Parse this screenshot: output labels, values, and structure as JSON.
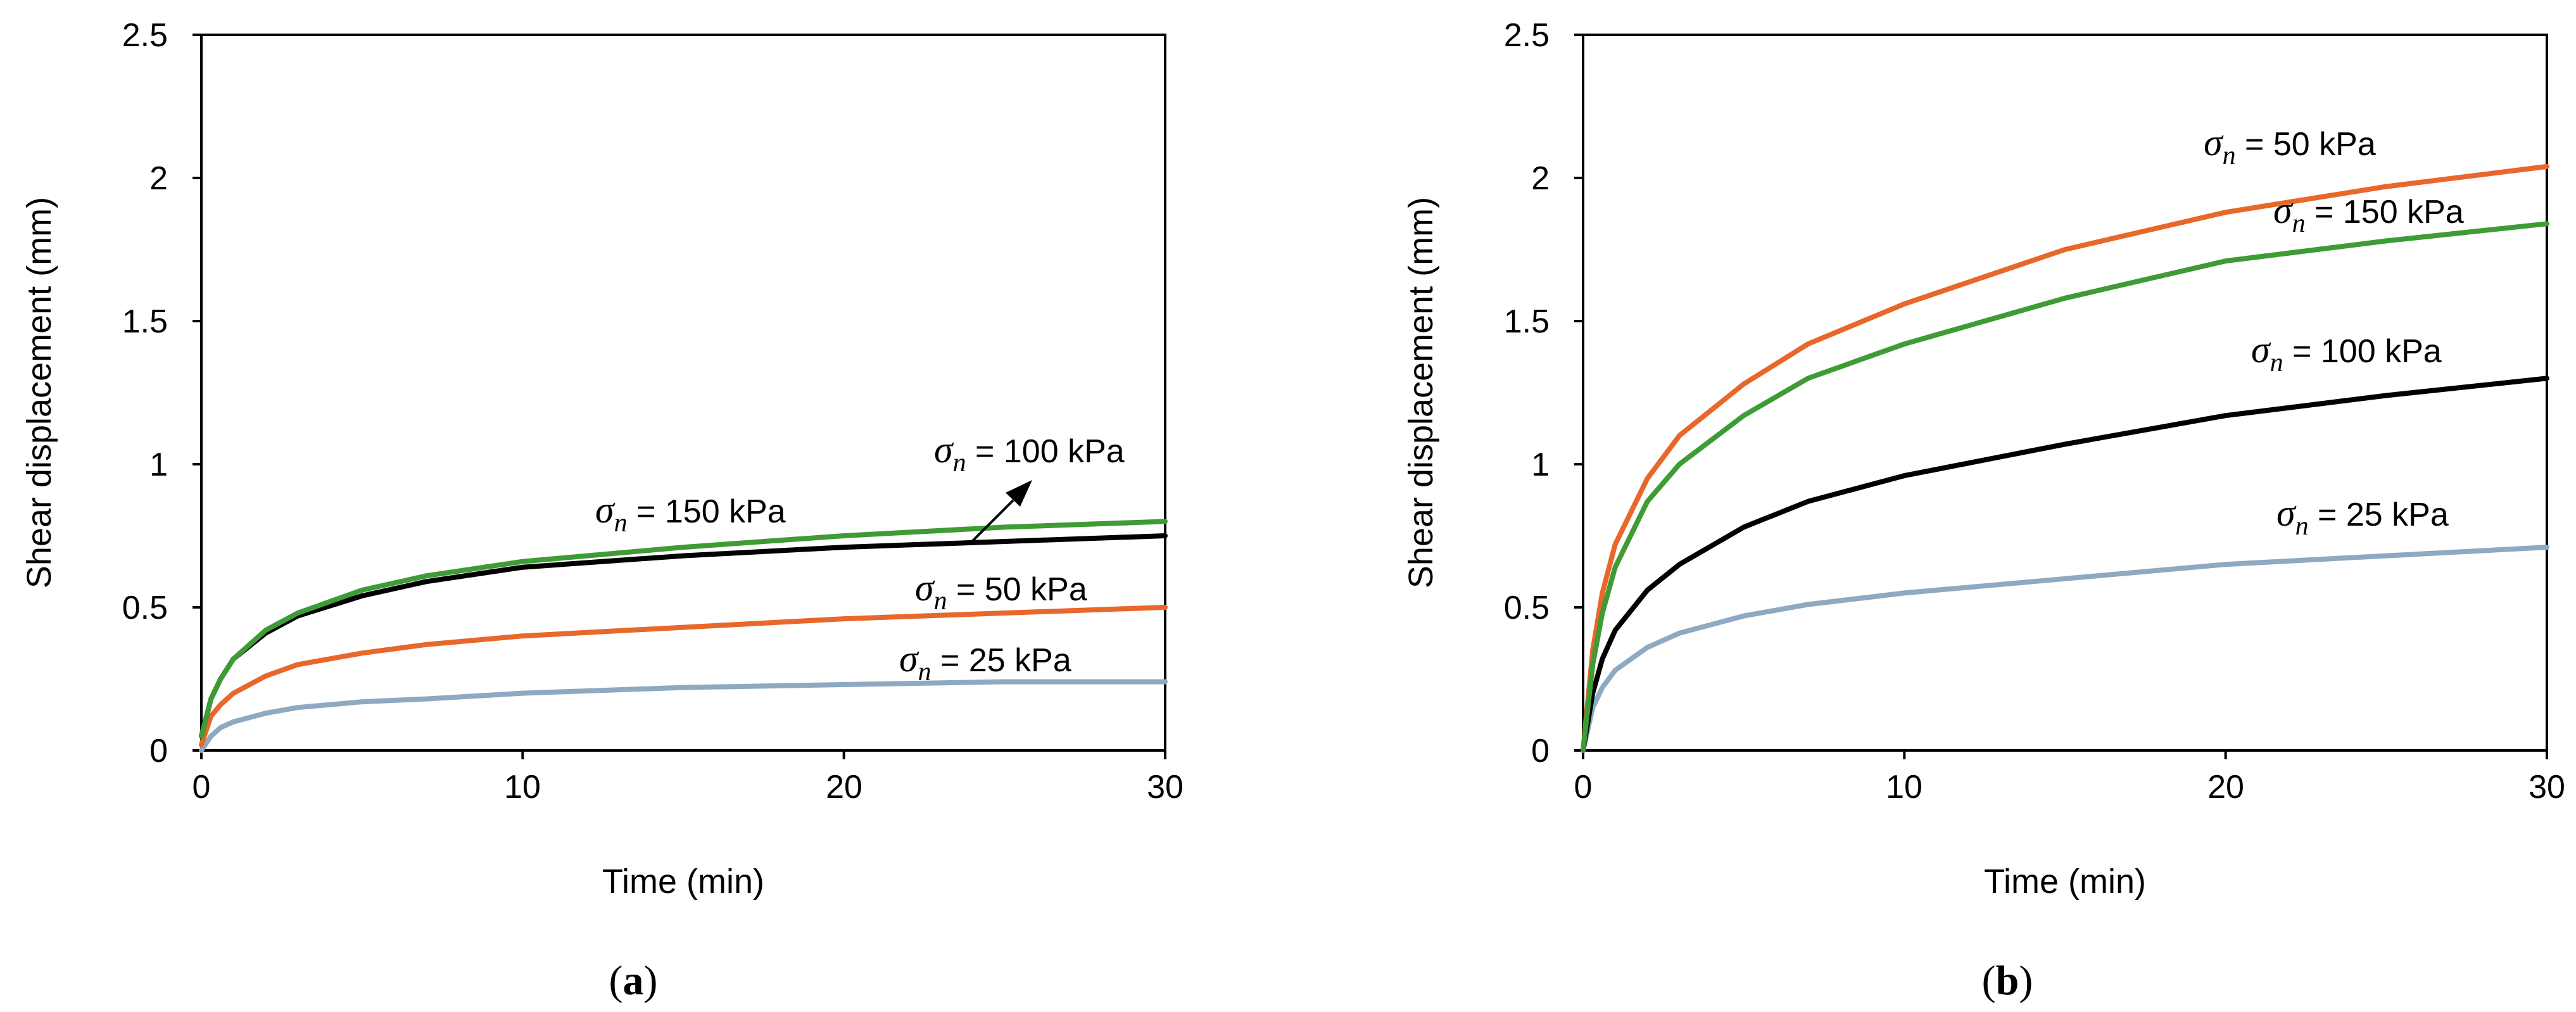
{
  "chart_data": [
    {
      "type": "line",
      "panel_label": "a",
      "xlabel": "Time (min)",
      "ylabel": "Shear displacement (mm)",
      "xlim": [
        0,
        30
      ],
      "ylim": [
        0,
        2.5
      ],
      "xticks": [
        "0",
        "10",
        "20",
        "30"
      ],
      "yticks": [
        "0",
        "0.5",
        "1",
        "1.5",
        "2",
        "2.5"
      ],
      "grid": false,
      "series": [
        {
          "name": "σn = 25 kPa",
          "label_prefix": "σ",
          "label_sub": "n",
          "label_suffix": " = 25 kPa",
          "color": "#8EA9C1",
          "x": [
            0,
            0.3,
            0.6,
            1,
            2,
            3,
            5,
            7,
            10,
            15,
            20,
            25,
            30
          ],
          "y": [
            0,
            0.05,
            0.08,
            0.1,
            0.13,
            0.15,
            0.17,
            0.18,
            0.2,
            0.22,
            0.23,
            0.24,
            0.24
          ]
        },
        {
          "name": "σn = 50 kPa",
          "label_prefix": "σ",
          "label_sub": "n",
          "label_suffix": " = 50 kPa",
          "color": "#E8672A",
          "x": [
            0,
            0.3,
            0.6,
            1,
            2,
            3,
            5,
            7,
            10,
            15,
            20,
            25,
            30
          ],
          "y": [
            0.02,
            0.12,
            0.16,
            0.2,
            0.26,
            0.3,
            0.34,
            0.37,
            0.4,
            0.43,
            0.46,
            0.48,
            0.5
          ]
        },
        {
          "name": "σn = 100 kPa",
          "label_prefix": "σ",
          "label_sub": "n",
          "label_suffix": " = 100 kPa",
          "color": "#000000",
          "x": [
            0,
            0.3,
            0.6,
            1,
            2,
            3,
            5,
            7,
            10,
            15,
            20,
            25,
            30
          ],
          "y": [
            0.05,
            0.18,
            0.25,
            0.32,
            0.41,
            0.47,
            0.54,
            0.59,
            0.64,
            0.68,
            0.71,
            0.73,
            0.75
          ]
        },
        {
          "name": "σn = 150 kPa",
          "label_prefix": "σ",
          "label_sub": "n",
          "label_suffix": " = 150 kPa",
          "color": "#3E9B35",
          "x": [
            0,
            0.3,
            0.6,
            1,
            2,
            3,
            5,
            7,
            10,
            15,
            20,
            25,
            30
          ],
          "y": [
            0.05,
            0.18,
            0.25,
            0.32,
            0.42,
            0.48,
            0.56,
            0.61,
            0.66,
            0.71,
            0.75,
            0.78,
            0.8
          ]
        }
      ]
    },
    {
      "type": "line",
      "panel_label": "b",
      "xlabel": "Time (min)",
      "ylabel": "Shear displacement (mm)",
      "xlim": [
        0,
        30
      ],
      "ylim": [
        0,
        2.5
      ],
      "xticks": [
        "0",
        "10",
        "20",
        "30"
      ],
      "yticks": [
        "0",
        "0.5",
        "1",
        "1.5",
        "2",
        "2.5"
      ],
      "grid": false,
      "series": [
        {
          "name": "σn = 25 kPa",
          "label_prefix": "σ",
          "label_sub": "n",
          "label_suffix": " = 25 kPa",
          "color": "#8EA9C1",
          "x": [
            0,
            0.3,
            0.6,
            1,
            2,
            3,
            5,
            7,
            10,
            15,
            20,
            25,
            30
          ],
          "y": [
            0,
            0.15,
            0.22,
            0.28,
            0.36,
            0.41,
            0.47,
            0.51,
            0.55,
            0.6,
            0.65,
            0.68,
            0.71
          ]
        },
        {
          "name": "σn = 50 kPa",
          "label_prefix": "σ",
          "label_sub": "n",
          "label_suffix": " = 50 kPa",
          "color": "#E8672A",
          "x": [
            0,
            0.3,
            0.6,
            1,
            2,
            3,
            5,
            7,
            10,
            15,
            20,
            25,
            30
          ],
          "y": [
            0,
            0.35,
            0.55,
            0.72,
            0.95,
            1.1,
            1.28,
            1.42,
            1.56,
            1.75,
            1.88,
            1.97,
            2.04
          ]
        },
        {
          "name": "σn = 100 kPa",
          "label_prefix": "σ",
          "label_sub": "n",
          "label_suffix": " = 100 kPa",
          "color": "#000000",
          "x": [
            0,
            0.3,
            0.6,
            1,
            2,
            3,
            5,
            7,
            10,
            15,
            20,
            25,
            30
          ],
          "y": [
            0,
            0.2,
            0.32,
            0.42,
            0.56,
            0.65,
            0.78,
            0.87,
            0.96,
            1.07,
            1.17,
            1.24,
            1.3
          ]
        },
        {
          "name": "σn = 150 kPa",
          "label_prefix": "σ",
          "label_sub": "n",
          "label_suffix": " = 150 kPa",
          "color": "#3E9B35",
          "x": [
            0,
            0.3,
            0.6,
            1,
            2,
            3,
            5,
            7,
            10,
            15,
            20,
            25,
            30
          ],
          "y": [
            0,
            0.3,
            0.48,
            0.64,
            0.87,
            1.0,
            1.17,
            1.3,
            1.42,
            1.58,
            1.71,
            1.78,
            1.84
          ]
        }
      ]
    }
  ]
}
